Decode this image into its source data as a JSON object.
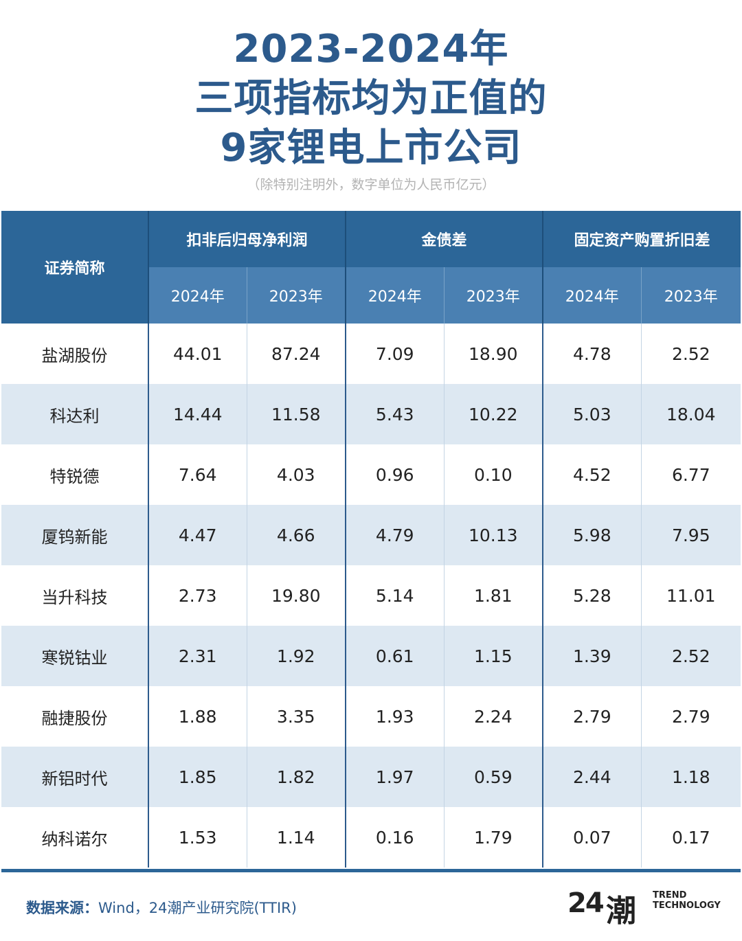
{
  "title": {
    "line1": "2023-2024年",
    "line2": "三项指标均为正值的",
    "line3": "9家锂电上市公司"
  },
  "subtitle": "（除特别注明外，数字单位为人民币亿元）",
  "table": {
    "name_header": "证券简称",
    "groups": [
      "扣非后归母净利润",
      "金债差",
      "固定资产购置折旧差"
    ],
    "years": [
      "2024年",
      "2023年",
      "2024年",
      "2023年",
      "2024年",
      "2023年"
    ],
    "rows": [
      {
        "name": "盐湖股份",
        "values": [
          "44.01",
          "87.24",
          "7.09",
          "18.90",
          "4.78",
          "2.52"
        ]
      },
      {
        "name": "科达利",
        "values": [
          "14.44",
          "11.58",
          "5.43",
          "10.22",
          "5.03",
          "18.04"
        ]
      },
      {
        "name": "特锐德",
        "values": [
          "7.64",
          "4.03",
          "0.96",
          "0.10",
          "4.52",
          "6.77"
        ]
      },
      {
        "name": "厦钨新能",
        "values": [
          "4.47",
          "4.66",
          "4.79",
          "10.13",
          "5.98",
          "7.95"
        ]
      },
      {
        "name": "当升科技",
        "values": [
          "2.73",
          "19.80",
          "5.14",
          "1.81",
          "5.28",
          "11.01"
        ]
      },
      {
        "name": "寒锐钴业",
        "values": [
          "2.31",
          "1.92",
          "0.61",
          "1.15",
          "1.39",
          "2.52"
        ]
      },
      {
        "name": "融捷股份",
        "values": [
          "1.88",
          "3.35",
          "1.93",
          "2.24",
          "2.79",
          "2.79"
        ]
      },
      {
        "name": "新铝时代",
        "values": [
          "1.85",
          "1.82",
          "1.97",
          "0.59",
          "2.44",
          "1.18"
        ]
      },
      {
        "name": "纳科诺尔",
        "values": [
          "1.53",
          "1.14",
          "0.16",
          "1.79",
          "0.07",
          "0.17"
        ]
      }
    ]
  },
  "footer": {
    "source_label": "数据来源：",
    "source_text": "Wind，24潮产业研究院(TTIR)",
    "logo_number": "24",
    "logo_char": "潮",
    "logo_en_line1": "TREND",
    "logo_en_line2": "TECHNOLOGY"
  },
  "colors": {
    "title": "#2c5a8c",
    "header_dark": "#2c6698",
    "header_light": "#4a80b2",
    "row_alt": "#dde8f2"
  }
}
